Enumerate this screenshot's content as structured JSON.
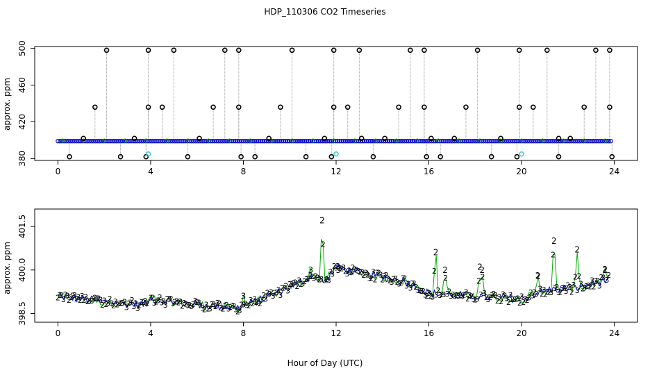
{
  "page": {
    "title": "HDP_110306  CO2 Timeseries",
    "xlabel": "Hour of Day (UTC)"
  },
  "colors": {
    "bg": "#ffffff",
    "axis": "#000000",
    "series_black": "#000000",
    "series_blue": "#0000cc",
    "series_green": "#00aa00",
    "series_cyan": "#33cccc",
    "spike_line": "#999999"
  },
  "chart_data": [
    {
      "type": "line",
      "panel": "top",
      "title": "HDP_110306  CO2 Timeseries",
      "xlabel": "",
      "ylabel": "approx. ppm",
      "xlim": [
        -1,
        25
      ],
      "ylim": [
        378,
        502
      ],
      "xticks": [
        0,
        4,
        8,
        12,
        16,
        20,
        24
      ],
      "yticks": [
        380,
        420,
        460,
        500
      ],
      "grid": false,
      "baseline_value": 399,
      "low_spikes": [
        0.5,
        2.7,
        3.8,
        5.6,
        7.9,
        8.5,
        10.7,
        11.8,
        13.6,
        15.9,
        16.5,
        18.7,
        19.8,
        21.6,
        23.9
      ],
      "mid_spikes": [
        1.6,
        3.9,
        4.5,
        6.7,
        7.8,
        9.6,
        11.9,
        12.5,
        14.7,
        15.8,
        17.6,
        19.9,
        20.5,
        22.7,
        23.8
      ],
      "high_spikes": [
        2.1,
        3.9,
        5.0,
        7.2,
        7.8,
        10.1,
        11.9,
        13.0,
        15.2,
        15.8,
        18.1,
        19.9,
        21.1,
        23.2,
        23.8
      ],
      "small_spikes": [
        1.1,
        3.3,
        6.1,
        9.1,
        11.5,
        13.1,
        14.1,
        16.1,
        17.1,
        19.1,
        21.6,
        22.1
      ],
      "cyan_points": [
        {
          "x": 3.9,
          "y": 385
        },
        {
          "x": 12.0,
          "y": 385
        },
        {
          "x": 20.0,
          "y": 385
        }
      ]
    },
    {
      "type": "line",
      "panel": "bottom",
      "xlabel": "Hour of Day (UTC)",
      "ylabel": "approx. ppm",
      "xlim": [
        -1,
        25
      ],
      "ylim": [
        398.2,
        402.1
      ],
      "xticks": [
        0,
        4,
        8,
        12,
        16,
        20,
        24
      ],
      "yticks": [
        398.5,
        400.0,
        401.5
      ],
      "ytick_labels": [
        "398.5",
        "400.0",
        "401.5"
      ],
      "grid": false,
      "series": [
        {
          "marker": "2",
          "color": "green",
          "note": ""
        },
        {
          "marker": "3",
          "color": "blue",
          "note": ""
        }
      ],
      "profile": [
        {
          "x": 0.0,
          "y": 399.1
        },
        {
          "x": 2.0,
          "y": 398.9
        },
        {
          "x": 3.8,
          "y": 398.8
        },
        {
          "x": 4.0,
          "y": 399.0
        },
        {
          "x": 6.0,
          "y": 398.8
        },
        {
          "x": 7.8,
          "y": 398.7
        },
        {
          "x": 8.5,
          "y": 398.9
        },
        {
          "x": 10.0,
          "y": 399.4
        },
        {
          "x": 11.0,
          "y": 399.8
        },
        {
          "x": 11.5,
          "y": 399.6
        },
        {
          "x": 12.0,
          "y": 400.1
        },
        {
          "x": 13.0,
          "y": 399.9
        },
        {
          "x": 15.0,
          "y": 399.6
        },
        {
          "x": 16.0,
          "y": 399.2
        },
        {
          "x": 18.0,
          "y": 399.1
        },
        {
          "x": 20.0,
          "y": 399.0
        },
        {
          "x": 21.0,
          "y": 399.3
        },
        {
          "x": 22.5,
          "y": 399.4
        },
        {
          "x": 23.8,
          "y": 399.7
        }
      ],
      "peaks": [
        {
          "x": 11.4,
          "y": 401.7,
          "label": "2"
        },
        {
          "x": 16.3,
          "y": 400.6,
          "label": "2"
        },
        {
          "x": 16.7,
          "y": 400.0,
          "label": "2"
        },
        {
          "x": 18.2,
          "y": 400.1,
          "label": "2"
        },
        {
          "x": 18.3,
          "y": 400.0,
          "label": "2"
        },
        {
          "x": 20.7,
          "y": 399.8,
          "label": "2"
        },
        {
          "x": 21.4,
          "y": 401.0,
          "label": "2"
        },
        {
          "x": 22.4,
          "y": 400.7,
          "label": "2"
        },
        {
          "x": 23.6,
          "y": 400.0,
          "label": "2"
        },
        {
          "x": 8.0,
          "y": 399.1,
          "label": "3"
        },
        {
          "x": 10.9,
          "y": 400.0,
          "label": "3"
        },
        {
          "x": 12.1,
          "y": 400.0,
          "label": "3"
        }
      ]
    }
  ]
}
